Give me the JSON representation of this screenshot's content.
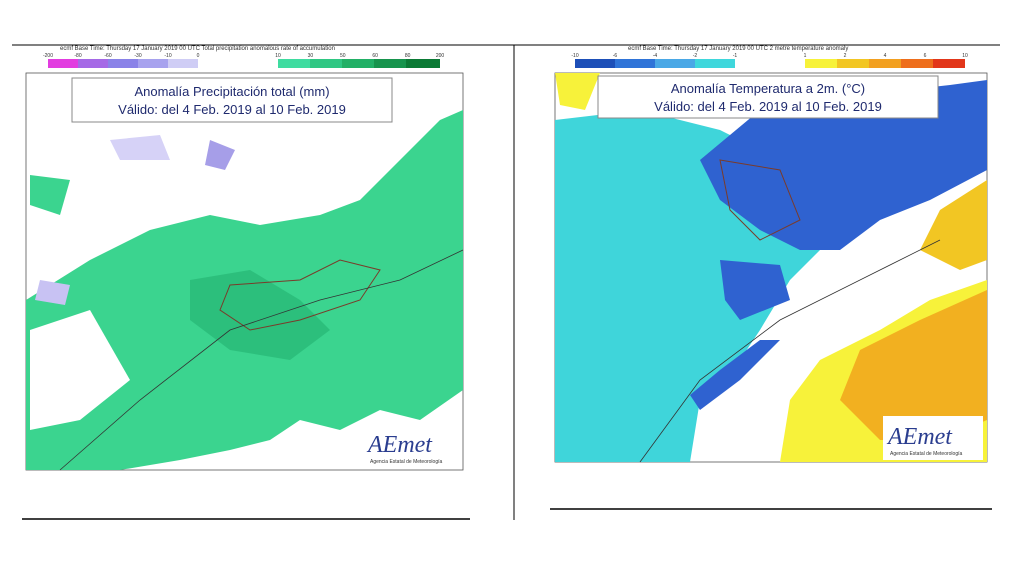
{
  "left_map": {
    "header": "ecmf  Base Time: Thursday 17 January 2019 00 UTC  Total precipitation anomalous rate of accumulation",
    "colorbar_labels": [
      "-200",
      "-80",
      "-60",
      "-30",
      "-10",
      "0",
      "10",
      "30",
      "50",
      "60",
      "80",
      "200"
    ],
    "title": "Anomalía Precipitación total (mm)",
    "valid": "Válido: del 4 Feb. 2019 al 10 Feb. 2019",
    "logo": "AEmet",
    "agency": "Agencia Estatal de Meteorología"
  },
  "right_map": {
    "header": "ecmf  Base Time: Thursday 17 January 2019 00 UTC  2 metre temperature anomaly",
    "colorbar_labels": [
      "-10",
      "-6",
      "-4",
      "-2",
      "-1",
      "1",
      "2",
      "4",
      "6",
      "10"
    ],
    "title": "Anomalía Temperatura a 2m. (°C)",
    "valid": "Válido: del 4 Feb. 2019 al 10 Feb. 2019",
    "logo": "AEmet",
    "agency": "Agencia Estatal de Meteorología"
  }
}
